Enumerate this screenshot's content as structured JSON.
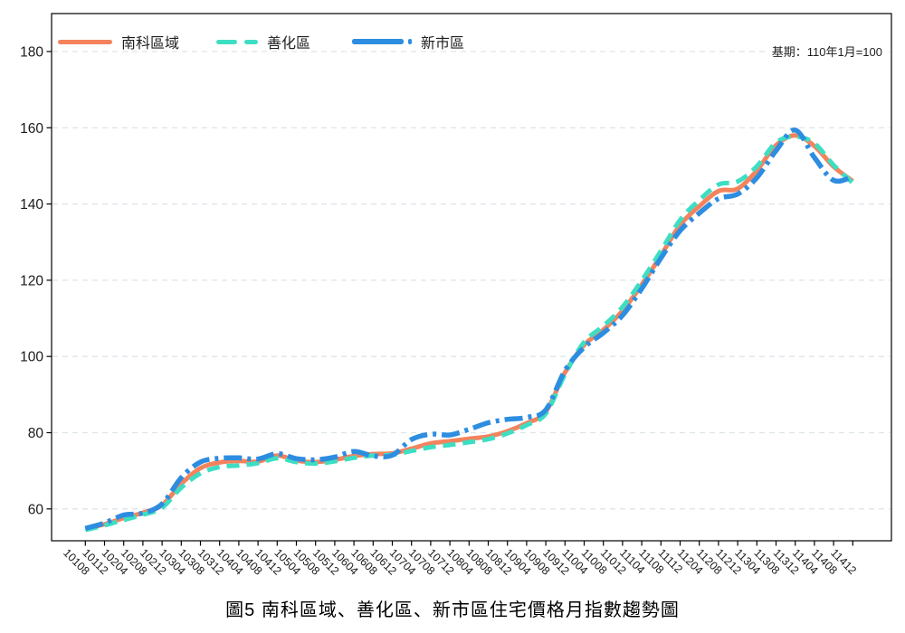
{
  "title": "圖5 南科區域、善化區、新市區住宅價格月指數趨勢圖",
  "note": "基期：110年1月=100",
  "colors": {
    "nanke": "#F4835D",
    "shanhua": "#3DDEC3",
    "xinshi": "#2D8DE0",
    "grid": "#dde4ea",
    "axis": "#000000",
    "text": "#1a1a1a"
  },
  "chart_data": {
    "type": "line",
    "title": "圖5 南科區域、善化區、新市區住宅價格月指數趨勢圖",
    "note": "基期：110年1月=100",
    "grid": "horizontal-dashed",
    "legend_position": "top-left-inside",
    "ylim": [
      51.5,
      190
    ],
    "yticks": [
      60,
      80,
      100,
      120,
      140,
      160,
      180
    ],
    "x_labels": [
      "10108",
      "10112",
      "10204",
      "10208",
      "10212",
      "10304",
      "10308",
      "10312",
      "10404",
      "10408",
      "10412",
      "10504",
      "10508",
      "10512",
      "10604",
      "10608",
      "10612",
      "10704",
      "10708",
      "10712",
      "10804",
      "10808",
      "10812",
      "10904",
      "10908",
      "10912",
      "11004",
      "11008",
      "11012",
      "11104",
      "11108",
      "11112",
      "11204",
      "11208",
      "11212",
      "11304",
      "11308",
      "11312",
      "11404",
      "11408",
      "11412"
    ],
    "series": [
      {
        "id": "nanke",
        "name": "南科區域",
        "color": "#F4835D",
        "style": "solid",
        "dash": "",
        "width": 5,
        "values": [
          54.8,
          56.0,
          57.6,
          59.0,
          61.0,
          66.6,
          70.7,
          72.2,
          72.6,
          72.4,
          74.0,
          72.7,
          72.3,
          72.9,
          73.9,
          74.4,
          74.6,
          75.8,
          77.2,
          77.8,
          78.4,
          79.0,
          80.4,
          82.5,
          85.5,
          95.8,
          103.0,
          107.0,
          112.0,
          118.8,
          126.5,
          134.5,
          139.4,
          143.4,
          144.0,
          148.8,
          155.4,
          158.0,
          155.2,
          149.8,
          146.0
        ]
      },
      {
        "id": "shanhua",
        "name": "善化區",
        "color": "#3DDEC3",
        "style": "dashed",
        "dash": "14 8",
        "width": 5,
        "values": [
          54.5,
          55.7,
          57.1,
          58.5,
          60.3,
          65.6,
          69.3,
          71.0,
          71.4,
          72.0,
          73.3,
          72.3,
          71.9,
          72.5,
          73.4,
          74.0,
          74.2,
          75.2,
          76.2,
          76.8,
          77.5,
          78.3,
          79.8,
          82.0,
          85.0,
          95.3,
          103.8,
          108.0,
          113.0,
          119.9,
          127.7,
          135.8,
          141.0,
          145.1,
          145.9,
          149.9,
          156.1,
          157.7,
          155.9,
          150.2,
          145.5
        ]
      },
      {
        "id": "xinshi",
        "name": "新市區",
        "color": "#2D8DE0",
        "style": "dash-dot",
        "dash": "20 6 4 6",
        "width": 5.5,
        "values": [
          54.9,
          56.3,
          58.4,
          58.9,
          61.3,
          68.2,
          72.3,
          73.3,
          73.4,
          73.1,
          74.5,
          73.2,
          72.9,
          73.6,
          75.1,
          73.9,
          74.1,
          78.2,
          79.6,
          79.4,
          80.9,
          82.6,
          83.5,
          84.0,
          86.0,
          96.3,
          102.4,
          106.2,
          110.8,
          117.8,
          125.8,
          133.0,
          137.6,
          141.4,
          142.6,
          146.9,
          154.0,
          159.4,
          152.2,
          146.2,
          147.2
        ]
      }
    ]
  }
}
